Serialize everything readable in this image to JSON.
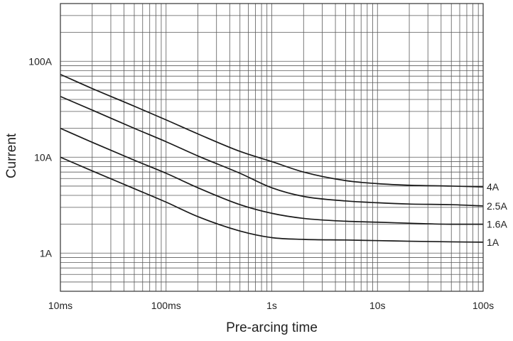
{
  "chart_data": {
    "type": "line",
    "title": "",
    "xlabel": "Pre-arcing time",
    "ylabel": "Current",
    "x_scale": "log",
    "y_scale": "log",
    "xlim": [
      0.01,
      100
    ],
    "ylim": [
      0.4,
      400
    ],
    "grid": true,
    "legend": "inline-right",
    "x_ticks": [
      {
        "value": 0.01,
        "label": "10ms"
      },
      {
        "value": 0.1,
        "label": "100ms"
      },
      {
        "value": 1,
        "label": "1s"
      },
      {
        "value": 10,
        "label": "10s"
      },
      {
        "value": 100,
        "label": "100s"
      }
    ],
    "y_ticks": [
      {
        "value": 1,
        "label": "1A"
      },
      {
        "value": 10,
        "label": "10A"
      },
      {
        "value": 100,
        "label": "100A"
      }
    ],
    "series": [
      {
        "name": "4A",
        "points": [
          [
            0.01,
            73
          ],
          [
            0.02,
            52
          ],
          [
            0.05,
            34
          ],
          [
            0.1,
            24.5
          ],
          [
            0.2,
            17.5
          ],
          [
            0.5,
            11.5
          ],
          [
            1,
            9
          ],
          [
            2,
            7
          ],
          [
            5,
            5.7
          ],
          [
            10,
            5.3
          ],
          [
            20,
            5.1
          ],
          [
            50,
            5.0
          ],
          [
            100,
            4.9
          ]
        ]
      },
      {
        "name": "2.5A",
        "points": [
          [
            0.01,
            43
          ],
          [
            0.02,
            31
          ],
          [
            0.05,
            20
          ],
          [
            0.1,
            14.5
          ],
          [
            0.2,
            10.3
          ],
          [
            0.5,
            6.8
          ],
          [
            1,
            4.8
          ],
          [
            2,
            3.9
          ],
          [
            5,
            3.5
          ],
          [
            10,
            3.35
          ],
          [
            20,
            3.25
          ],
          [
            50,
            3.2
          ],
          [
            100,
            3.1
          ]
        ]
      },
      {
        "name": "1.6A",
        "points": [
          [
            0.01,
            20
          ],
          [
            0.02,
            14.3
          ],
          [
            0.05,
            9.3
          ],
          [
            0.1,
            6.8
          ],
          [
            0.2,
            4.8
          ],
          [
            0.5,
            3.2
          ],
          [
            1,
            2.6
          ],
          [
            2,
            2.3
          ],
          [
            5,
            2.15
          ],
          [
            10,
            2.1
          ],
          [
            20,
            2.05
          ],
          [
            50,
            2.0
          ],
          [
            100,
            2.0
          ]
        ]
      },
      {
        "name": "1A",
        "points": [
          [
            0.01,
            10
          ],
          [
            0.02,
            7.2
          ],
          [
            0.05,
            4.7
          ],
          [
            0.1,
            3.4
          ],
          [
            0.2,
            2.4
          ],
          [
            0.5,
            1.7
          ],
          [
            1,
            1.45
          ],
          [
            2,
            1.39
          ],
          [
            5,
            1.37
          ],
          [
            10,
            1.35
          ],
          [
            20,
            1.33
          ],
          [
            50,
            1.31
          ],
          [
            100,
            1.3
          ]
        ]
      }
    ]
  }
}
